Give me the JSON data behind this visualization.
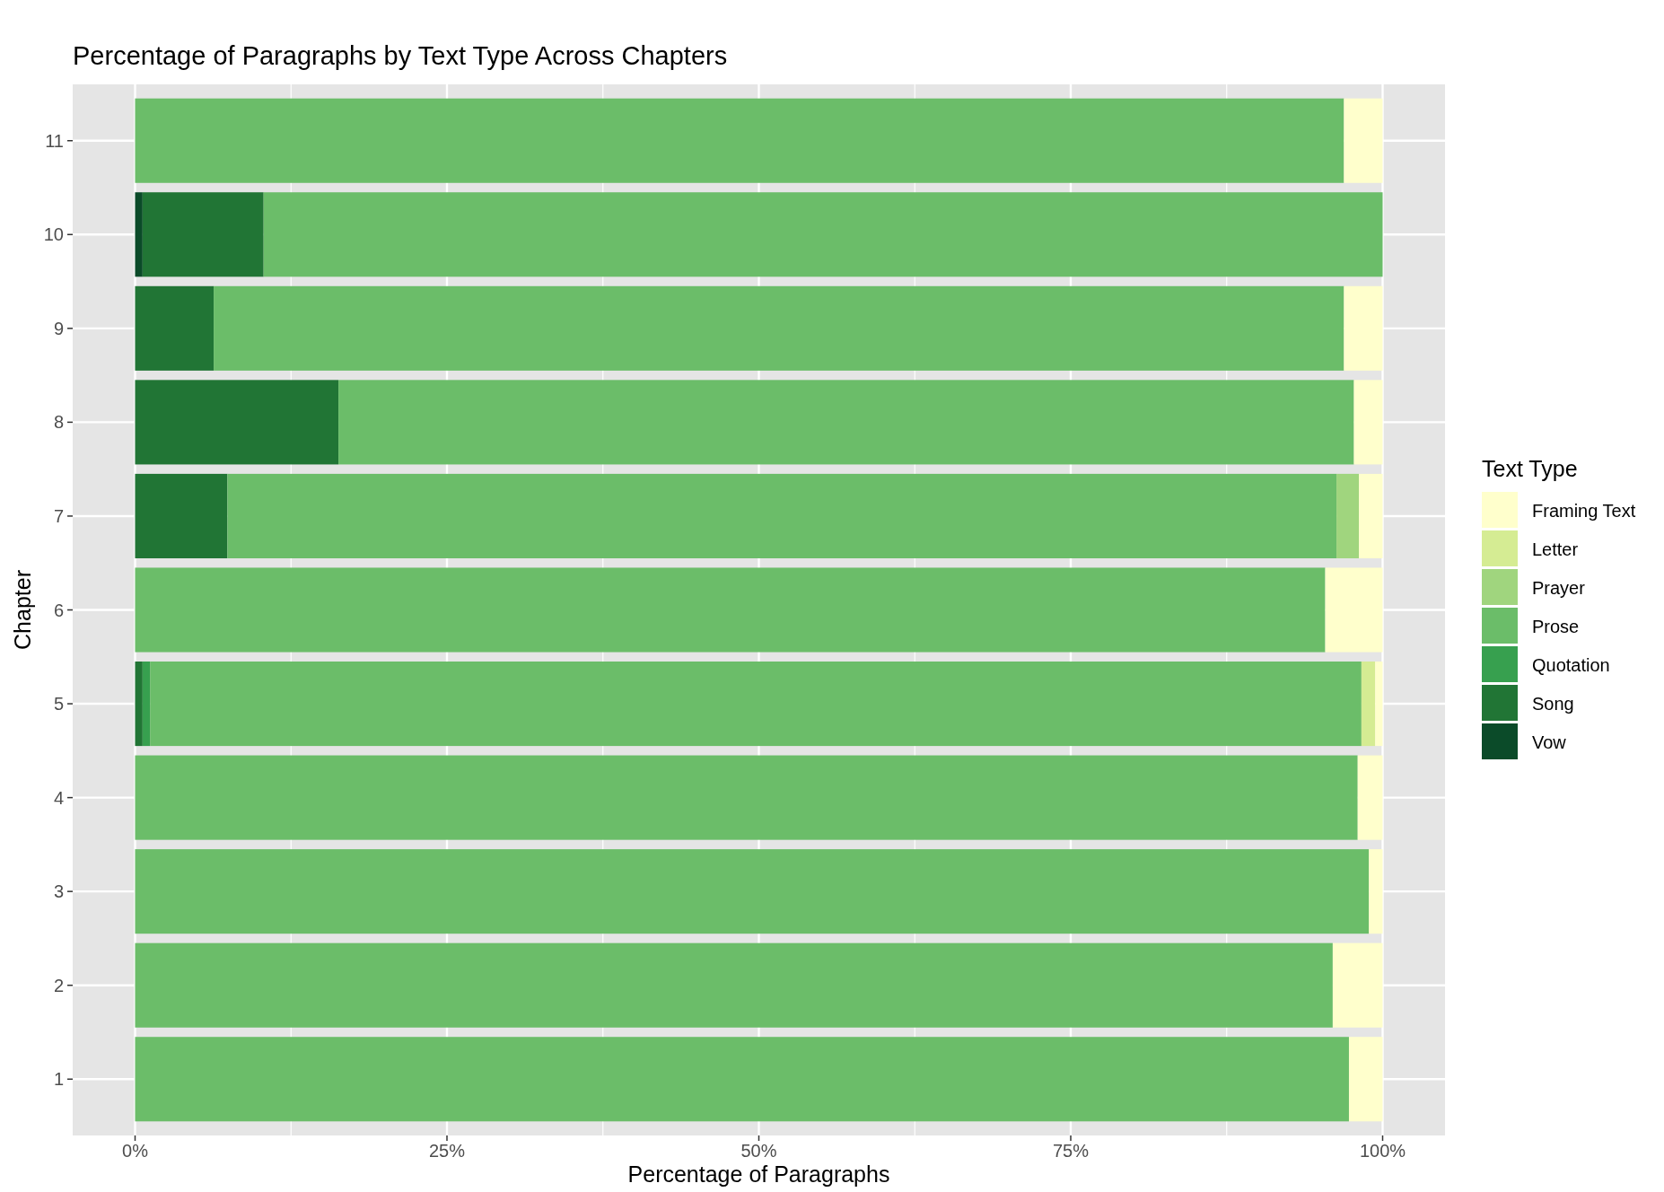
{
  "chart_data": {
    "type": "bar",
    "orientation": "horizontal",
    "stacked": true,
    "title": "Percentage of Paragraphs by Text Type Across Chapters",
    "xlabel": "Percentage of Paragraphs",
    "ylabel": "Chapter",
    "legend_title": "Text Type",
    "legend": "right",
    "grid": true,
    "categories": [
      "11",
      "10",
      "9",
      "8",
      "7",
      "6",
      "5",
      "4",
      "3",
      "2",
      "1"
    ],
    "xlim": [
      -5,
      105
    ],
    "xticks": [
      {
        "value": 0,
        "label": "0%"
      },
      {
        "value": 25,
        "label": "25%"
      },
      {
        "value": 50,
        "label": "50%"
      },
      {
        "value": 75,
        "label": "75%"
      },
      {
        "value": 100,
        "label": "100%"
      }
    ],
    "series": [
      {
        "name": "Vow",
        "color": "#0b4b29",
        "values": [
          null,
          0.6,
          null,
          null,
          null,
          null,
          null,
          null,
          null,
          null,
          null
        ]
      },
      {
        "name": "Song",
        "color": "#217535",
        "values": [
          null,
          9.7,
          6.3,
          16.3,
          7.4,
          null,
          0.6,
          null,
          null,
          null,
          null
        ]
      },
      {
        "name": "Quotation",
        "color": "#37a04f",
        "values": [
          null,
          null,
          null,
          null,
          null,
          null,
          0.6,
          null,
          null,
          null,
          null
        ]
      },
      {
        "name": "Prose",
        "color": "#6bbd69",
        "values": [
          96.9,
          89.7,
          90.6,
          81.4,
          88.9,
          95.4,
          97.1,
          98.0,
          98.9,
          96.0,
          97.3
        ]
      },
      {
        "name": "Prayer",
        "color": "#a0d57e",
        "values": [
          null,
          null,
          null,
          null,
          1.8,
          null,
          null,
          null,
          null,
          null,
          null
        ]
      },
      {
        "name": "Letter",
        "color": "#d5ec93",
        "values": [
          null,
          null,
          null,
          null,
          null,
          null,
          1.1,
          null,
          null,
          null,
          null
        ]
      },
      {
        "name": "Framing Text",
        "color": "#ffffcc",
        "values": [
          3.1,
          null,
          3.1,
          2.3,
          1.9,
          4.6,
          0.6,
          2.0,
          1.1,
          4.0,
          2.7
        ]
      }
    ]
  }
}
